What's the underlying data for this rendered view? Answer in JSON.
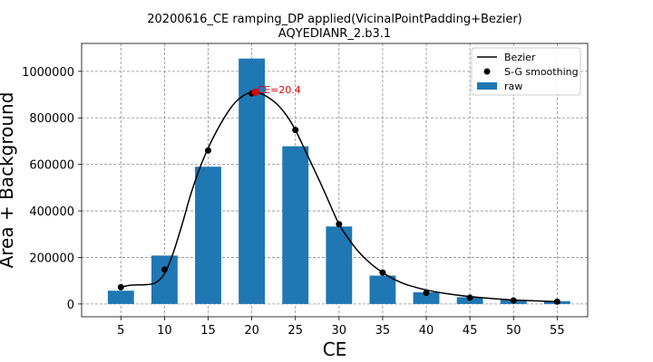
{
  "chart_data": {
    "type": "bar",
    "title": [
      "20200616_CE ramping_DP applied(VicinalPointPadding+Bezier)",
      "AQYEDIANR_2.b3.1"
    ],
    "xlabel": "CE",
    "ylabel": "Area + Background",
    "xlim": [
      0.5,
      58.5
    ],
    "ylim": [
      -55000,
      1120000
    ],
    "x_ticks": [
      5,
      10,
      15,
      20,
      25,
      30,
      35,
      40,
      45,
      50,
      55
    ],
    "y_ticks": [
      0,
      200000,
      400000,
      600000,
      800000,
      1000000
    ],
    "y_tick_labels": [
      "0",
      "200000",
      "400000",
      "600000",
      "800000",
      "1000000"
    ],
    "grid": true,
    "legend_position": "top-right",
    "bar_width": 3,
    "series": [
      {
        "name": "raw",
        "kind": "bar",
        "color": "#1f77b4",
        "x": [
          5,
          10,
          15,
          20,
          25,
          30,
          35,
          40,
          45,
          50,
          55
        ],
        "values": [
          57000,
          208000,
          590000,
          1055000,
          678000,
          333000,
          122000,
          50000,
          29000,
          17000,
          12000
        ]
      },
      {
        "name": "S-G smoothing",
        "kind": "scatter",
        "color": "#000000",
        "x": [
          5,
          10,
          15,
          20,
          25,
          30,
          35,
          40,
          45,
          50,
          55
        ],
        "values": [
          72000,
          148000,
          660000,
          905000,
          748000,
          343000,
          135000,
          48000,
          27000,
          15000,
          10000
        ]
      },
      {
        "name": "Bezier",
        "kind": "line",
        "color": "#000000",
        "x": [
          5,
          6,
          7,
          8,
          9,
          10,
          11,
          12,
          13,
          14,
          15,
          16,
          17,
          18,
          19,
          20,
          21,
          22,
          23,
          24,
          25,
          26,
          27,
          28,
          29,
          30,
          31,
          32,
          33,
          34,
          35,
          36,
          37,
          38,
          40,
          42,
          44,
          46,
          48,
          50,
          52,
          54,
          55
        ],
        "values": [
          72000,
          80000,
          82000,
          83000,
          92000,
          130000,
          220000,
          340000,
          470000,
          580000,
          670000,
          745000,
          810000,
          862000,
          895000,
          910000,
          905000,
          885000,
          855000,
          810000,
          748000,
          670000,
          590000,
          510000,
          425000,
          343000,
          285000,
          235000,
          195000,
          162000,
          135000,
          112000,
          94000,
          80000,
          60000,
          46000,
          36000,
          28000,
          22000,
          17000,
          14000,
          11000,
          10000
        ]
      }
    ],
    "annotation": {
      "text": "CE=20.4",
      "x": 20.4,
      "y": 910000,
      "color": "#e00000"
    }
  }
}
